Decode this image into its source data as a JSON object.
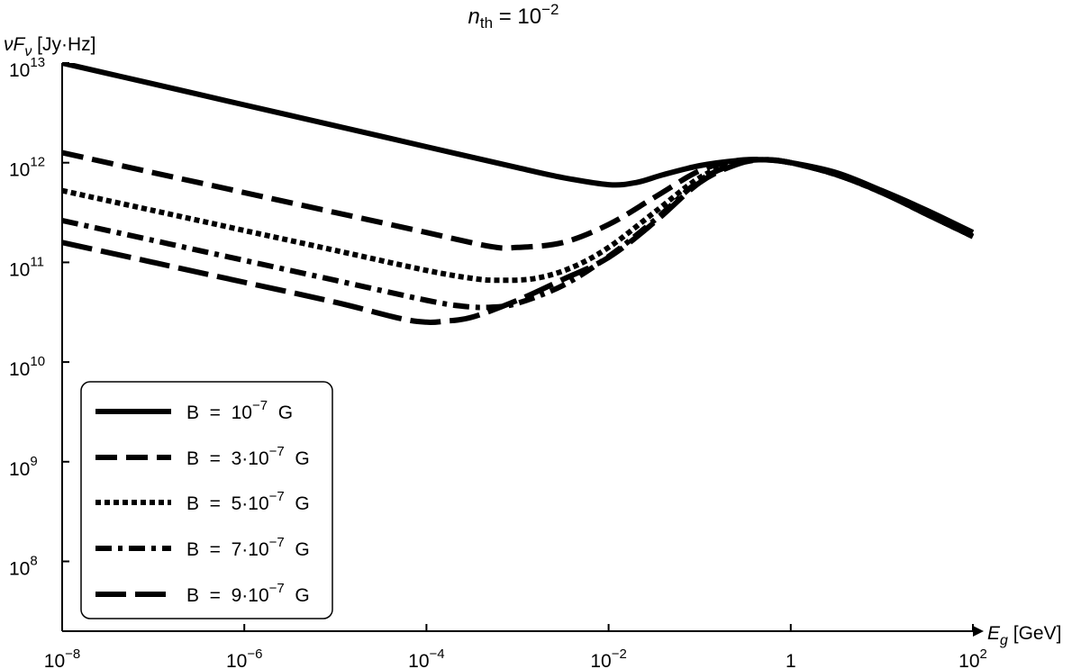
{
  "chart_data": {
    "type": "line",
    "title": {
      "base": "n",
      "sub": "th",
      "eq": " = 10",
      "sup": "−2"
    },
    "ylabel": {
      "base": "νF",
      "sub": "ν",
      "unit": " [Jy·Hz]"
    },
    "xlabel": {
      "base": "E",
      "sub": "g",
      "unit": " [GeV]"
    },
    "x_scale": "log",
    "y_scale": "log",
    "xlim_log10": [
      -8,
      2
    ],
    "ylim_log10": [
      7.3,
      13
    ],
    "xticks": [
      {
        "exp": -8,
        "base": "10",
        "sup": "−8"
      },
      {
        "exp": -6,
        "base": "10",
        "sup": "−6"
      },
      {
        "exp": -4,
        "base": "10",
        "sup": "−4"
      },
      {
        "exp": -2,
        "base": "10",
        "sup": "−2"
      },
      {
        "exp": 0,
        "base": "1",
        "sup": ""
      },
      {
        "exp": 2,
        "base": "10",
        "sup": "2"
      }
    ],
    "yticks": [
      {
        "exp": 8,
        "base": "10",
        "sup": "8"
      },
      {
        "exp": 9,
        "base": "10",
        "sup": "9"
      },
      {
        "exp": 10,
        "base": "10",
        "sup": "10"
      },
      {
        "exp": 11,
        "base": "10",
        "sup": "11"
      },
      {
        "exp": 12,
        "base": "10",
        "sup": "12"
      },
      {
        "exp": 13,
        "base": "10",
        "sup": "13"
      }
    ],
    "grid": false,
    "legend_position": "bottom-left",
    "series": [
      {
        "name": "B = 10^-7 G",
        "label": {
          "pre": "B  =  10",
          "sup": "−7",
          "post": "  G"
        },
        "dash": "solid",
        "x_log10": [
          -8,
          -7,
          -6,
          -5,
          -4,
          -3,
          -2.5,
          -2,
          -1.7,
          -1.4,
          -1,
          -0.6,
          -0.3,
          0,
          0.5,
          1,
          1.5,
          2
        ],
        "y_log10": [
          13.0,
          12.79,
          12.58,
          12.37,
          12.16,
          11.95,
          11.85,
          11.78,
          11.8,
          11.88,
          11.97,
          12.02,
          12.03,
          12.0,
          11.9,
          11.72,
          11.52,
          11.3
        ]
      },
      {
        "name": "B = 3·10^-7 G",
        "label": {
          "pre": "B  =  3·10",
          "sup": "−7",
          "post": "  G"
        },
        "dash": "24 10",
        "x_log10": [
          -8,
          -7,
          -6,
          -5,
          -4,
          -3.3,
          -3,
          -2.5,
          -2,
          -1.5,
          -1,
          -0.6,
          -0.3,
          0,
          0.5,
          1,
          1.5,
          2
        ],
        "y_log10": [
          12.1,
          11.9,
          11.7,
          11.5,
          11.3,
          11.16,
          11.15,
          11.2,
          11.38,
          11.65,
          11.92,
          12.02,
          12.03,
          12.0,
          11.88,
          11.7,
          11.48,
          11.26
        ]
      },
      {
        "name": "B = 5·10^-7 G",
        "label": {
          "pre": "B  =  5·10",
          "sup": "−7",
          "post": "  G"
        },
        "dash": "6 4",
        "x_log10": [
          -8,
          -7,
          -6,
          -5,
          -4,
          -3.5,
          -3.2,
          -2.8,
          -2.4,
          -2,
          -1.5,
          -1,
          -0.6,
          -0.3,
          0,
          0.5,
          1,
          1.5,
          2
        ],
        "y_log10": [
          11.72,
          11.52,
          11.32,
          11.12,
          10.92,
          10.84,
          10.82,
          10.84,
          10.95,
          11.15,
          11.5,
          11.85,
          12.0,
          12.03,
          12.0,
          11.88,
          11.7,
          11.48,
          11.26
        ]
      },
      {
        "name": "B = 7·10^-7 G",
        "label": {
          "pre": "B  =  7·10",
          "sup": "−7",
          "post": "  G"
        },
        "dash": "18 7 5 7",
        "x_log10": [
          -8,
          -7,
          -6,
          -5,
          -4,
          -3.6,
          -3.3,
          -3,
          -2.5,
          -2,
          -1.5,
          -1,
          -0.6,
          -0.3,
          0,
          0.5,
          1,
          1.5,
          2
        ],
        "y_log10": [
          11.42,
          11.22,
          11.02,
          10.82,
          10.62,
          10.56,
          10.55,
          10.59,
          10.77,
          11.06,
          11.42,
          11.82,
          11.99,
          12.03,
          12.0,
          11.88,
          11.7,
          11.48,
          11.26
        ]
      },
      {
        "name": "B = 9·10^-7 G",
        "label": {
          "pre": "B  =  9·10",
          "sup": "−7",
          "post": "  G"
        },
        "dash": "34 10",
        "x_log10": [
          -8,
          -7,
          -6,
          -5,
          -4.3,
          -4,
          -3.8,
          -3.5,
          -3,
          -2.5,
          -2,
          -1.5,
          -1,
          -0.6,
          -0.3,
          0,
          0.5,
          1,
          1.5,
          2
        ],
        "y_log10": [
          11.2,
          11.0,
          10.8,
          10.6,
          10.44,
          10.4,
          10.41,
          10.45,
          10.62,
          10.83,
          11.05,
          11.4,
          11.8,
          11.98,
          12.03,
          12.0,
          11.88,
          11.7,
          11.48,
          11.26
        ]
      }
    ]
  }
}
